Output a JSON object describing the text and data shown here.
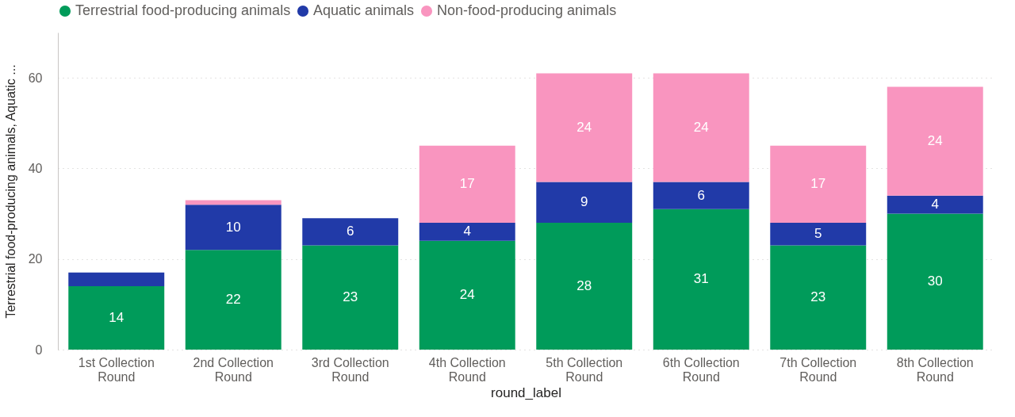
{
  "chart_data": {
    "type": "bar",
    "stacked": true,
    "xlabel": "round_label",
    "ylabel": "Terrestrial food-producing animals, Aquatic ...",
    "categories": [
      "1st Collection Round",
      "2nd Collection Round",
      "3rd Collection Round",
      "4th Collection Round",
      "5th Collection Round",
      "6th Collection Round",
      "7th Collection Round",
      "8th Collection Round"
    ],
    "series": [
      {
        "name": "Terrestrial food-producing animals",
        "color": "#009b5a",
        "values": [
          14,
          22,
          23,
          24,
          28,
          31,
          23,
          30
        ],
        "value_labels": [
          "14",
          "22",
          "23",
          "24",
          "28",
          "31",
          "23",
          "30"
        ]
      },
      {
        "name": "Aquatic animals",
        "color": "#213aa8",
        "values": [
          3,
          10,
          6,
          4,
          9,
          6,
          5,
          4
        ],
        "value_labels": [
          null,
          "10",
          "6",
          "4",
          "9",
          "6",
          "5",
          "4"
        ]
      },
      {
        "name": "Non-food-producing animals",
        "color": "#f995bf",
        "values": [
          null,
          1,
          null,
          17,
          24,
          24,
          17,
          24
        ],
        "value_labels": [
          null,
          null,
          null,
          "17",
          "24",
          "24",
          "17",
          "24"
        ]
      }
    ],
    "ylim": [
      0,
      70
    ],
    "yticks": [
      0,
      20,
      40,
      60
    ],
    "grid": "y",
    "legend": "top left"
  }
}
